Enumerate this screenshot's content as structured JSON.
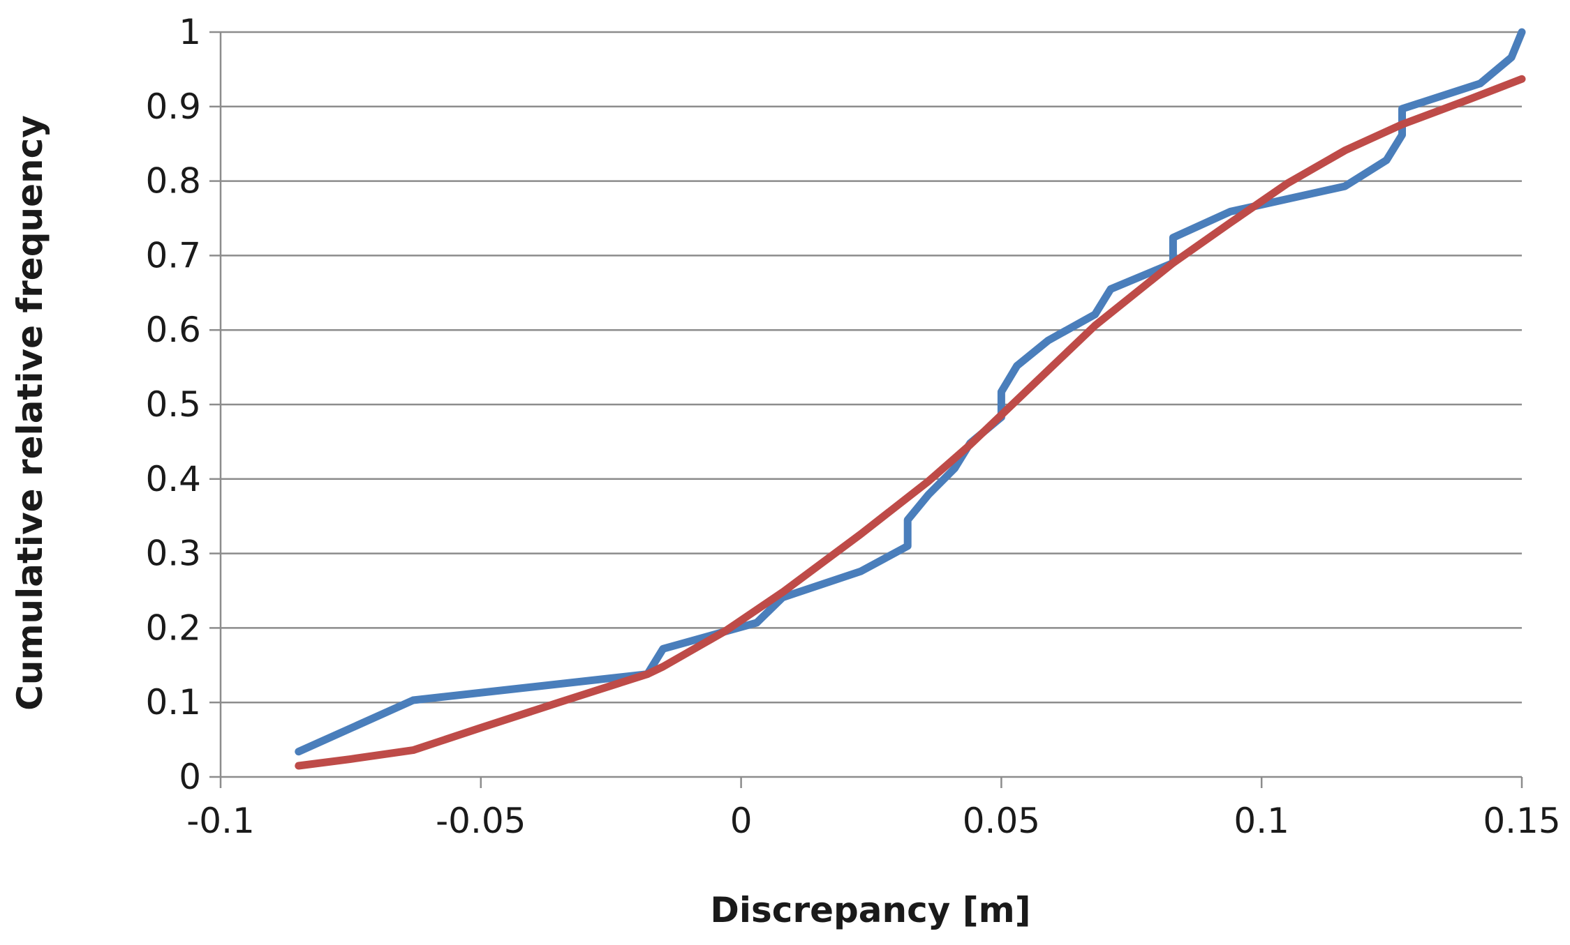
{
  "chart_data": {
    "type": "line",
    "xlabel": "Discrepancy [m]",
    "ylabel": "Cumulative relative frequency",
    "xlim": [
      -0.1,
      0.15
    ],
    "ylim": [
      0,
      1
    ],
    "x_ticks": [
      -0.1,
      -0.05,
      0,
      0.05,
      0.1,
      0.15
    ],
    "x_tick_labels": [
      "-0.1",
      "-0.05",
      "0",
      "0.05",
      "0.1",
      "0.15"
    ],
    "y_ticks": [
      0,
      0.1,
      0.2,
      0.3,
      0.4,
      0.5,
      0.6,
      0.7,
      0.8,
      0.9,
      1
    ],
    "y_tick_labels": [
      "0",
      "0.1",
      "0.2",
      "0.3",
      "0.4",
      "0.5",
      "0.6",
      "0.7",
      "0.8",
      "0.9",
      "1"
    ],
    "grid": "horizontal",
    "legend": "none",
    "series": [
      {
        "color": "#4a7ebb",
        "points": [
          [
            -0.085,
            0.034
          ],
          [
            -0.063,
            0.103
          ],
          [
            -0.018,
            0.138
          ],
          [
            -0.015,
            0.172
          ],
          [
            0.003,
            0.207
          ],
          [
            0.008,
            0.241
          ],
          [
            0.023,
            0.276
          ],
          [
            0.032,
            0.31
          ],
          [
            0.032,
            0.345
          ],
          [
            0.036,
            0.379
          ],
          [
            0.041,
            0.414
          ],
          [
            0.044,
            0.448
          ],
          [
            0.05,
            0.483
          ],
          [
            0.05,
            0.517
          ],
          [
            0.053,
            0.552
          ],
          [
            0.059,
            0.586
          ],
          [
            0.068,
            0.621
          ],
          [
            0.071,
            0.655
          ],
          [
            0.083,
            0.69
          ],
          [
            0.083,
            0.724
          ],
          [
            0.094,
            0.759
          ],
          [
            0.116,
            0.793
          ],
          [
            0.124,
            0.828
          ],
          [
            0.127,
            0.862
          ],
          [
            0.127,
            0.897
          ],
          [
            0.142,
            0.931
          ],
          [
            0.148,
            0.966
          ],
          [
            0.15,
            1.0
          ]
        ]
      },
      {
        "color": "#be4b48",
        "points": [
          [
            -0.085,
            0.015
          ],
          [
            -0.075,
            0.024
          ],
          [
            -0.063,
            0.036
          ],
          [
            -0.05,
            0.066
          ],
          [
            -0.035,
            0.1
          ],
          [
            -0.018,
            0.138
          ],
          [
            -0.015,
            0.148
          ],
          [
            -0.003,
            0.196
          ],
          [
            0.008,
            0.248
          ],
          [
            0.023,
            0.326
          ],
          [
            0.036,
            0.397
          ],
          [
            0.044,
            0.446
          ],
          [
            0.05,
            0.486
          ],
          [
            0.059,
            0.546
          ],
          [
            0.068,
            0.606
          ],
          [
            0.083,
            0.69
          ],
          [
            0.094,
            0.744
          ],
          [
            0.105,
            0.797
          ],
          [
            0.116,
            0.841
          ],
          [
            0.127,
            0.876
          ],
          [
            0.14,
            0.91
          ],
          [
            0.15,
            0.937
          ]
        ]
      }
    ]
  }
}
